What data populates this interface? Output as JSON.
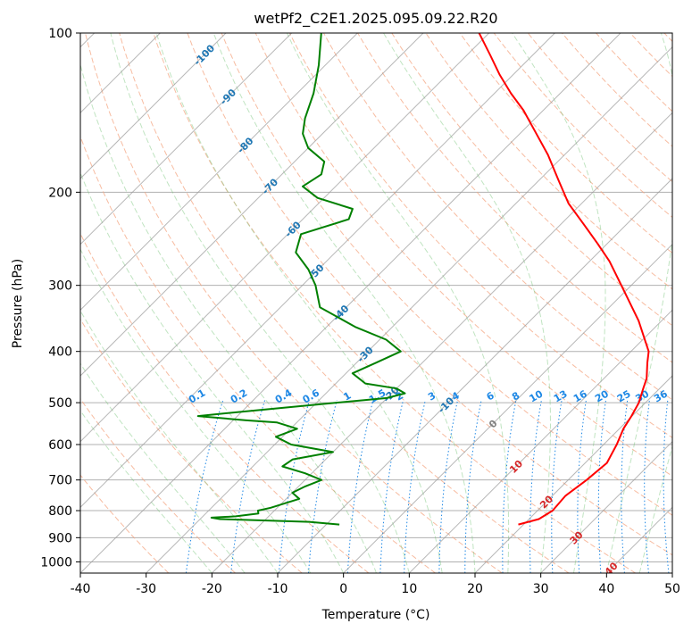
{
  "chart_data": {
    "type": "skew-t log-p diagram",
    "title": "wetPf2_C2E1.2025.095.09.22.R20",
    "xlabel": "Temperature (°C)",
    "ylabel": "Pressure (hPa)",
    "xlim": [
      -40,
      50
    ],
    "ylim_hpa": [
      1050,
      100
    ],
    "y_scale": "log",
    "grid": true,
    "x_ticks": [
      "-40",
      "-30",
      "-20",
      "-10",
      "0",
      "10",
      "20",
      "30",
      "40",
      "50"
    ],
    "y_ticks": [
      "100",
      "200",
      "300",
      "400",
      "500",
      "600",
      "700",
      "800",
      "900",
      "1000"
    ],
    "isotherm_labels": [
      "-100",
      "-90",
      "-80",
      "-70",
      "-60",
      "-50",
      "-40",
      "-30",
      "-20",
      "-10",
      "0",
      "10",
      "20",
      "30",
      "40"
    ],
    "isotherm_label_colors": {
      "cold": "#1f77b4",
      "zero": "#808080",
      "warm": "#d62728"
    },
    "mixing_ratio_labels": [
      "0.1",
      "0.2",
      "0.4",
      "0.6",
      "1",
      "1.5",
      "2",
      "3",
      "4",
      "6",
      "8",
      "10",
      "13",
      "16",
      "20",
      "25",
      "30",
      "36"
    ],
    "mixing_ratio_label_color": "#1e88e5",
    "series": [
      {
        "kind": "temperature",
        "color": "#ff0000",
        "points_p_t": [
          [
            850,
            19.2
          ],
          [
            830,
            21.5
          ],
          [
            800,
            22.3
          ],
          [
            750,
            22.0
          ],
          [
            700,
            22.8
          ],
          [
            650,
            23.3
          ],
          [
            600,
            22.0
          ],
          [
            560,
            20.6
          ],
          [
            530,
            19.9
          ],
          [
            500,
            19.0
          ],
          [
            470,
            17.5
          ],
          [
            450,
            16.5
          ],
          [
            420,
            14.2
          ],
          [
            400,
            12.7
          ],
          [
            350,
            6.5
          ],
          [
            300,
            -1.5
          ],
          [
            270,
            -7.0
          ],
          [
            250,
            -11.5
          ],
          [
            230,
            -16.5
          ],
          [
            210,
            -22.0
          ],
          [
            190,
            -27.0
          ],
          [
            170,
            -32.5
          ],
          [
            155,
            -37.5
          ],
          [
            140,
            -43.0
          ],
          [
            130,
            -47.5
          ],
          [
            120,
            -52.0
          ],
          [
            110,
            -56.5
          ],
          [
            100,
            -61.5
          ]
        ]
      },
      {
        "kind": "dewpoint",
        "color": "#008000",
        "points_p_t": [
          [
            850,
            -8.0
          ],
          [
            840,
            -13.0
          ],
          [
            830,
            -27.0
          ],
          [
            825,
            -28.5
          ],
          [
            820,
            -25.0
          ],
          [
            810,
            -22.0
          ],
          [
            800,
            -22.5
          ],
          [
            790,
            -21.0
          ],
          [
            760,
            -18.0
          ],
          [
            740,
            -20.0
          ],
          [
            720,
            -19.0
          ],
          [
            700,
            -17.5
          ],
          [
            680,
            -21.0
          ],
          [
            660,
            -25.5
          ],
          [
            640,
            -25.0
          ],
          [
            620,
            -20.0
          ],
          [
            600,
            -27.5
          ],
          [
            580,
            -31.0
          ],
          [
            560,
            -29.0
          ],
          [
            545,
            -33.0
          ],
          [
            540,
            -38.0
          ],
          [
            530,
            -46.0
          ],
          [
            520,
            -40.0
          ],
          [
            500,
            -27.0
          ],
          [
            490,
            -20.0
          ],
          [
            480,
            -18.0
          ],
          [
            470,
            -20.0
          ],
          [
            460,
            -25.5
          ],
          [
            440,
            -29.0
          ],
          [
            420,
            -27.0
          ],
          [
            400,
            -25.0
          ],
          [
            380,
            -29.0
          ],
          [
            360,
            -35.5
          ],
          [
            330,
            -44.0
          ],
          [
            300,
            -48.0
          ],
          [
            280,
            -51.5
          ],
          [
            260,
            -56.0
          ],
          [
            240,
            -58.0
          ],
          [
            225,
            -53.0
          ],
          [
            215,
            -54.0
          ],
          [
            205,
            -61.0
          ],
          [
            195,
            -65.0
          ],
          [
            185,
            -64.0
          ],
          [
            175,
            -65.5
          ],
          [
            165,
            -70.0
          ],
          [
            155,
            -73.0
          ],
          [
            145,
            -75.0
          ],
          [
            130,
            -77.5
          ],
          [
            115,
            -81.0
          ],
          [
            100,
            -85.5
          ]
        ]
      }
    ]
  }
}
